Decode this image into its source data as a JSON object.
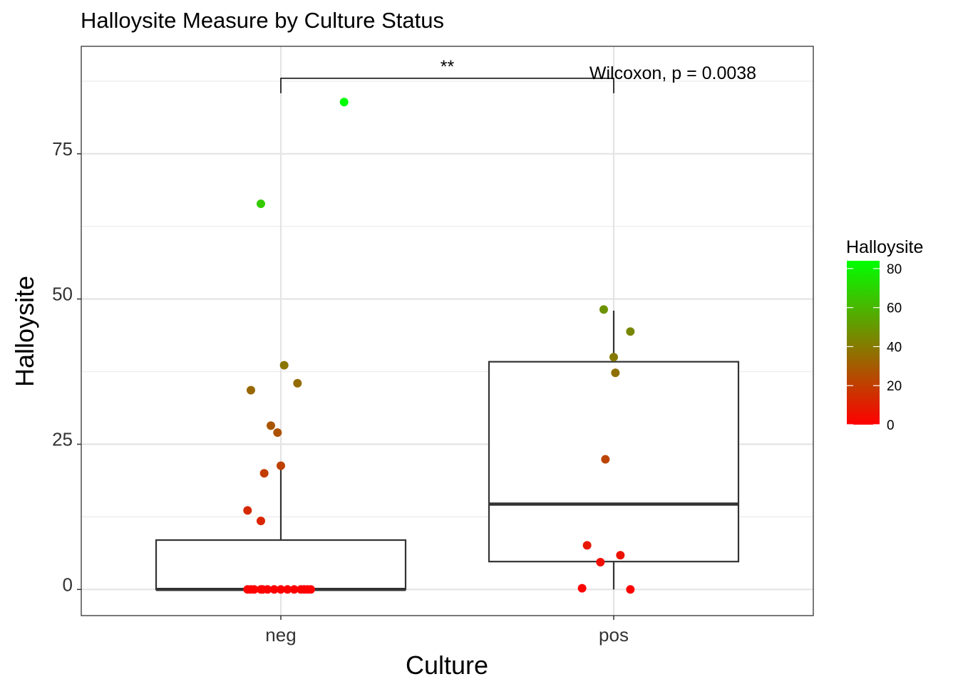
{
  "chart_data": {
    "type": "box+scatter",
    "title": "Halloysite Measure by Culture Status",
    "xlabel": "Culture",
    "ylabel": "Halloysite",
    "categories": [
      "neg",
      "pos"
    ],
    "ylim": [
      -4.5,
      93.5
    ],
    "yticks": [
      0,
      25,
      50,
      75
    ],
    "grid": true,
    "boxes": [
      {
        "category": "neg",
        "q1": 0,
        "median": 0,
        "q3": 8.5,
        "whisker_low": 0,
        "whisker_high": 21
      },
      {
        "category": "pos",
        "q1": 4.8,
        "median": 14.7,
        "q3": 39.2,
        "whisker_low": 0,
        "whisker_high": 48
      }
    ],
    "points": [
      {
        "category": "neg",
        "jitter": 0.19,
        "y": 83.9
      },
      {
        "category": "neg",
        "jitter": -0.06,
        "y": 66.4
      },
      {
        "category": "neg",
        "jitter": 0.01,
        "y": 38.6
      },
      {
        "category": "neg",
        "jitter": 0.05,
        "y": 35.5
      },
      {
        "category": "neg",
        "jitter": -0.09,
        "y": 34.3
      },
      {
        "category": "neg",
        "jitter": -0.03,
        "y": 28.2
      },
      {
        "category": "neg",
        "jitter": -0.01,
        "y": 27.0
      },
      {
        "category": "neg",
        "jitter": 0.0,
        "y": 21.3
      },
      {
        "category": "neg",
        "jitter": -0.05,
        "y": 20.0
      },
      {
        "category": "neg",
        "jitter": -0.1,
        "y": 13.6
      },
      {
        "category": "neg",
        "jitter": -0.06,
        "y": 11.8
      },
      {
        "category": "neg",
        "jitter": -0.1,
        "y": 0
      },
      {
        "category": "neg",
        "jitter": -0.09,
        "y": 0
      },
      {
        "category": "neg",
        "jitter": -0.08,
        "y": 0
      },
      {
        "category": "neg",
        "jitter": -0.06,
        "y": 0
      },
      {
        "category": "neg",
        "jitter": -0.055,
        "y": 0
      },
      {
        "category": "neg",
        "jitter": -0.04,
        "y": 0
      },
      {
        "category": "neg",
        "jitter": -0.02,
        "y": 0
      },
      {
        "category": "neg",
        "jitter": 0.0,
        "y": 0
      },
      {
        "category": "neg",
        "jitter": 0.02,
        "y": 0
      },
      {
        "category": "neg",
        "jitter": 0.04,
        "y": 0
      },
      {
        "category": "neg",
        "jitter": 0.06,
        "y": 0
      },
      {
        "category": "neg",
        "jitter": 0.07,
        "y": 0
      },
      {
        "category": "neg",
        "jitter": 0.08,
        "y": 0
      },
      {
        "category": "neg",
        "jitter": 0.09,
        "y": 0
      },
      {
        "category": "pos",
        "jitter": -0.03,
        "y": 48.2
      },
      {
        "category": "pos",
        "jitter": 0.05,
        "y": 44.4
      },
      {
        "category": "pos",
        "jitter": 0.0,
        "y": 40.0
      },
      {
        "category": "pos",
        "jitter": 0.005,
        "y": 37.3
      },
      {
        "category": "pos",
        "jitter": -0.025,
        "y": 22.4
      },
      {
        "category": "pos",
        "jitter": -0.08,
        "y": 7.6
      },
      {
        "category": "pos",
        "jitter": 0.02,
        "y": 5.9
      },
      {
        "category": "pos",
        "jitter": -0.04,
        "y": 4.7
      },
      {
        "category": "pos",
        "jitter": -0.095,
        "y": 0.2
      },
      {
        "category": "pos",
        "jitter": 0.05,
        "y": 0
      }
    ],
    "comparison": {
      "groups": [
        "neg",
        "pos"
      ],
      "y": 88,
      "label": "**",
      "test_label": "Wilcoxon, p = 0.0038"
    },
    "legend": {
      "title": "Halloysite",
      "position": "right",
      "min": 0,
      "max": 84,
      "ticks": [
        0,
        20,
        40,
        60,
        80
      ],
      "low_color": "#ff0000",
      "high_color": "#00ff00"
    }
  }
}
